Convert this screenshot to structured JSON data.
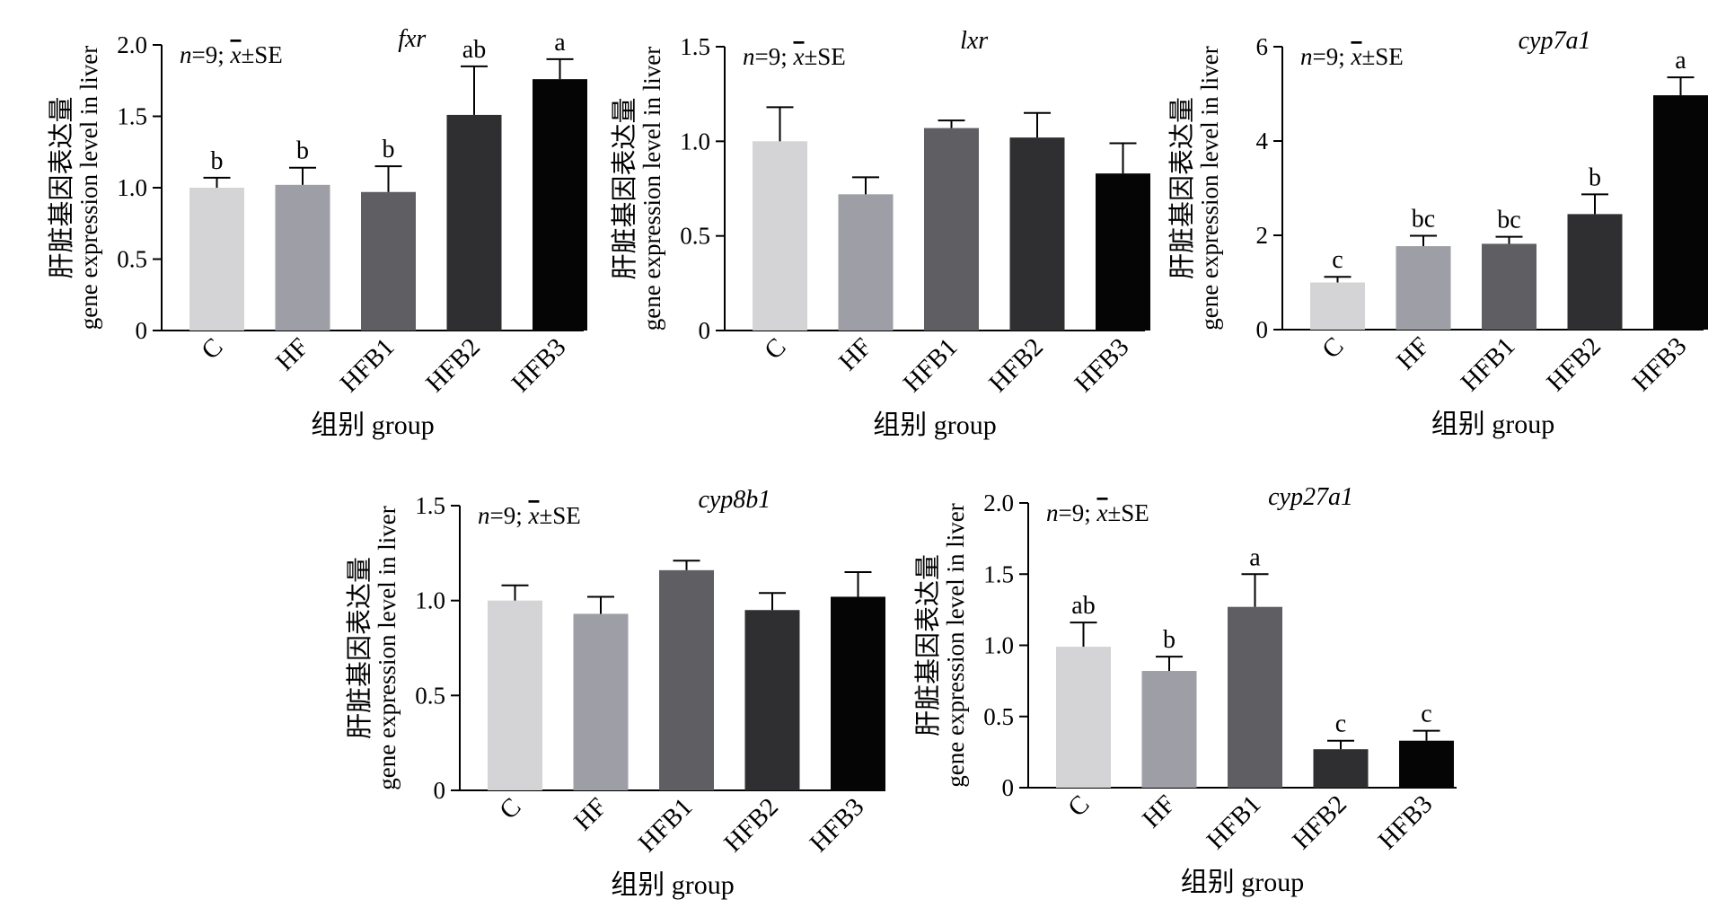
{
  "figure": {
    "common": {
      "categories": [
        "C",
        "HF",
        "HFB1",
        "HFB2",
        "HFB3"
      ],
      "xlabel": "组别 group",
      "ylabel_cn": "肝脏基因表达量",
      "ylabel_en": "gene expression level in liver",
      "stat_n": "n",
      "stat_eq": "=9; ",
      "stat_x": "x",
      "stat_se": "±SE",
      "bar_colors": [
        "#d4d4d6",
        "#9e9ea6",
        "#5f5e62",
        "#2f2f31",
        "#050505"
      ]
    }
  },
  "chart_data": [
    {
      "type": "bar",
      "title": "fxr",
      "categories": [
        "C",
        "HF",
        "HFB1",
        "HFB2",
        "HFB3"
      ],
      "values": [
        1.0,
        1.02,
        0.97,
        1.51,
        1.76
      ],
      "errors": [
        0.07,
        0.12,
        0.18,
        0.34,
        0.14
      ],
      "labels": [
        "b",
        "b",
        "b",
        "ab",
        "a"
      ],
      "ylim": [
        0,
        2.0
      ],
      "yticks": [
        0,
        0.5,
        1.0,
        1.5,
        2.0
      ],
      "ytick_labels": [
        "0",
        "0.5",
        "1.0",
        "1.5",
        "2.0"
      ],
      "xlabel": "组别 group",
      "ylabel": "肝脏基因表达量 gene expression level in liver"
    },
    {
      "type": "bar",
      "title": "lxr",
      "categories": [
        "C",
        "HF",
        "HFB1",
        "HFB2",
        "HFB3"
      ],
      "values": [
        1.0,
        0.72,
        1.07,
        1.02,
        0.83
      ],
      "errors": [
        0.18,
        0.09,
        0.04,
        0.13,
        0.16
      ],
      "labels": [
        "",
        "",
        "",
        "",
        ""
      ],
      "ylim": [
        0,
        1.5
      ],
      "yticks": [
        0,
        0.5,
        1.0,
        1.5
      ],
      "ytick_labels": [
        "0",
        "0.5",
        "1.0",
        "1.5"
      ],
      "xlabel": "组别 group",
      "ylabel": "肝脏基因表达量 gene expression level in liver"
    },
    {
      "type": "bar",
      "title": "cyp7a1",
      "categories": [
        "C",
        "HF",
        "HFB1",
        "HFB2",
        "HFB3"
      ],
      "values": [
        1.0,
        1.77,
        1.82,
        2.45,
        4.97
      ],
      "errors": [
        0.12,
        0.22,
        0.15,
        0.42,
        0.38
      ],
      "labels": [
        "c",
        "bc",
        "bc",
        "b",
        "a"
      ],
      "ylim": [
        0,
        6
      ],
      "yticks": [
        0,
        2,
        4,
        6
      ],
      "ytick_labels": [
        "0",
        "2",
        "4",
        "6"
      ],
      "xlabel": "组别 group",
      "ylabel": "肝脏基因表达量 gene expression level in liver"
    },
    {
      "type": "bar",
      "title": "cyp8b1",
      "categories": [
        "C",
        "HF",
        "HFB1",
        "HFB2",
        "HFB3"
      ],
      "values": [
        1.0,
        0.93,
        1.16,
        0.95,
        1.02
      ],
      "errors": [
        0.08,
        0.09,
        0.05,
        0.09,
        0.13
      ],
      "labels": [
        "",
        "",
        "",
        "",
        ""
      ],
      "ylim": [
        0,
        1.5
      ],
      "yticks": [
        0,
        0.5,
        1.0,
        1.5
      ],
      "ytick_labels": [
        "0",
        "0.5",
        "1.0",
        "1.5"
      ],
      "xlabel": "组别 group",
      "ylabel": "肝脏基因表达量 gene expression level in liver"
    },
    {
      "type": "bar",
      "title": "cyp27a1",
      "categories": [
        "C",
        "HF",
        "HFB1",
        "HFB2",
        "HFB3"
      ],
      "values": [
        0.99,
        0.82,
        1.27,
        0.27,
        0.33
      ],
      "errors": [
        0.17,
        0.1,
        0.23,
        0.06,
        0.07
      ],
      "labels": [
        "ab",
        "b",
        "a",
        "c",
        "c"
      ],
      "ylim": [
        0,
        2.0
      ],
      "yticks": [
        0,
        0.5,
        1.0,
        1.5,
        2.0
      ],
      "ytick_labels": [
        "0",
        "0.5",
        "1.0",
        "1.5",
        "2.0"
      ],
      "xlabel": "组别 group",
      "ylabel": "肝脏基因表达量 gene expression level in liver"
    }
  ]
}
